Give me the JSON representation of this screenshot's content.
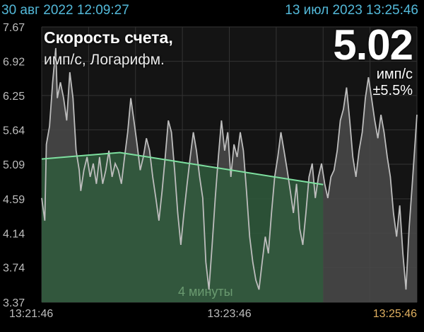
{
  "header": {
    "start_datetime": "30 авг 2022 12:09:27",
    "end_datetime": "13 июл 2023 13:25:46"
  },
  "overlay": {
    "title": "Скорость счета,",
    "subtitle": "имп/с, Логарифм.",
    "current_value": "5.02",
    "unit": "имп/с",
    "error": "±5.5%",
    "duration": "4 минуты"
  },
  "colors": {
    "header_text": "#53b9d9",
    "series_line": "#bdbdbd",
    "series_fill": "#4a4a4a",
    "average_line": "#7ee0a0",
    "average_fill": "#2f5a3c",
    "end_time_label": "#e0b060",
    "tick_label": "#bdbdbd"
  },
  "chart_data": {
    "type": "line",
    "title": "Скорость счета,",
    "ylabel": "имп/с, Логарифм.",
    "y_scale": "log",
    "ylim": [
      3.37,
      7.67
    ],
    "y_ticks": [
      "7.67",
      "6.92",
      "6.25",
      "5.64",
      "5.09",
      "4.59",
      "4.14",
      "3.74",
      "3.37"
    ],
    "x_ticks": [
      "13:21:46",
      "13:23:46",
      "13:25:46"
    ],
    "x_range_seconds": [
      0,
      240
    ],
    "grid": true,
    "series": [
      {
        "values": [
          [
            0,
            4.6
          ],
          [
            2,
            4.3
          ],
          [
            3,
            5.4
          ],
          [
            5,
            5.7
          ],
          [
            7,
            6.5
          ],
          [
            9,
            7.2
          ],
          [
            10,
            6.2
          ],
          [
            12,
            6.5
          ],
          [
            14,
            6.2
          ],
          [
            16,
            5.8
          ],
          [
            18,
            6.7
          ],
          [
            20,
            6.2
          ],
          [
            22,
            5.3
          ],
          [
            24,
            5.0
          ],
          [
            25,
            4.7
          ],
          [
            27,
            5.0
          ],
          [
            29,
            5.2
          ],
          [
            31,
            4.9
          ],
          [
            33,
            5.1
          ],
          [
            35,
            4.8
          ],
          [
            37,
            5.2
          ],
          [
            39,
            4.8
          ],
          [
            41,
            5.0
          ],
          [
            43,
            5.3
          ],
          [
            45,
            4.9
          ],
          [
            47,
            5.1
          ],
          [
            49,
            5.0
          ],
          [
            51,
            4.8
          ],
          [
            53,
            5.2
          ],
          [
            55,
            5.6
          ],
          [
            57,
            6.2
          ],
          [
            59,
            5.8
          ],
          [
            61,
            5.4
          ],
          [
            63,
            5.0
          ],
          [
            65,
            5.2
          ],
          [
            67,
            5.5
          ],
          [
            69,
            5.3
          ],
          [
            71,
            4.9
          ],
          [
            73,
            4.6
          ],
          [
            75,
            4.3
          ],
          [
            77,
            4.7
          ],
          [
            79,
            5.2
          ],
          [
            81,
            5.8
          ],
          [
            83,
            5.6
          ],
          [
            85,
            5.0
          ],
          [
            87,
            4.4
          ],
          [
            89,
            4.0
          ],
          [
            91,
            4.4
          ],
          [
            93,
            4.8
          ],
          [
            95,
            5.2
          ],
          [
            97,
            5.6
          ],
          [
            99,
            5.3
          ],
          [
            101,
            4.9
          ],
          [
            103,
            4.6
          ],
          [
            105,
            3.8
          ],
          [
            107,
            3.5
          ],
          [
            109,
            4.0
          ],
          [
            111,
            4.6
          ],
          [
            113,
            5.2
          ],
          [
            115,
            5.8
          ],
          [
            117,
            5.3
          ],
          [
            119,
            5.6
          ],
          [
            121,
            4.9
          ],
          [
            123,
            5.4
          ],
          [
            125,
            5.2
          ],
          [
            127,
            5.6
          ],
          [
            129,
            5.3
          ],
          [
            131,
            4.7
          ],
          [
            133,
            4.1
          ],
          [
            135,
            3.8
          ],
          [
            137,
            3.6
          ],
          [
            139,
            3.5
          ],
          [
            141,
            3.8
          ],
          [
            143,
            4.1
          ],
          [
            145,
            3.9
          ],
          [
            147,
            4.4
          ],
          [
            149,
            4.9
          ],
          [
            151,
            5.2
          ],
          [
            153,
            5.6
          ],
          [
            155,
            5.3
          ],
          [
            157,
            5.0
          ],
          [
            159,
            4.7
          ],
          [
            161,
            4.4
          ],
          [
            163,
            4.8
          ],
          [
            165,
            4.2
          ],
          [
            167,
            4.0
          ],
          [
            169,
            4.4
          ],
          [
            171,
            4.9
          ],
          [
            173,
            5.1
          ],
          [
            175,
            4.6
          ],
          [
            177,
            4.9
          ],
          [
            179,
            5.1
          ],
          [
            181,
            4.8
          ],
          [
            183,
            4.6
          ],
          [
            185,
            4.9
          ],
          [
            187,
            5.0
          ],
          [
            189,
            5.3
          ],
          [
            191,
            5.8
          ],
          [
            193,
            6.0
          ],
          [
            195,
            6.4
          ],
          [
            197,
            5.8
          ],
          [
            199,
            5.2
          ],
          [
            201,
            4.9
          ],
          [
            203,
            5.3
          ],
          [
            205,
            5.6
          ],
          [
            207,
            6.2
          ],
          [
            209,
            6.6
          ],
          [
            211,
            6.2
          ],
          [
            213,
            5.8
          ],
          [
            215,
            5.5
          ],
          [
            217,
            5.9
          ],
          [
            219,
            5.6
          ],
          [
            221,
            5.2
          ],
          [
            223,
            4.9
          ],
          [
            225,
            4.4
          ],
          [
            227,
            4.1
          ],
          [
            229,
            4.5
          ],
          [
            231,
            3.9
          ],
          [
            233,
            3.5
          ],
          [
            235,
            4.2
          ],
          [
            237,
            4.8
          ],
          [
            239,
            5.5
          ],
          [
            240,
            5.9
          ]
        ]
      },
      {
        "values": [
          [
            0,
            5.17
          ],
          [
            50,
            5.27
          ],
          [
            180,
            4.79
          ]
        ]
      }
    ]
  }
}
